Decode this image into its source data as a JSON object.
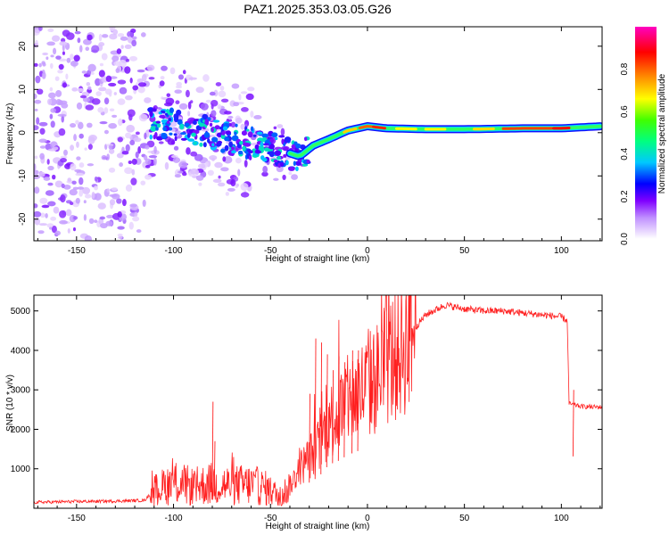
{
  "title": "PAZ1.2025.353.03.05.G26",
  "chart_data": [
    {
      "type": "heatmap",
      "panel": "spectrogram",
      "xlabel": "Height of straight line (km)",
      "ylabel": "Frequency (Hz)",
      "xlim": [
        -172,
        121
      ],
      "ylim": [
        -25,
        24.5
      ],
      "xticks": [
        -150,
        -100,
        -50,
        0,
        50,
        100
      ],
      "yticks": [
        -20,
        -10,
        0,
        10,
        20
      ],
      "tone_centerline": [
        {
          "x": -112,
          "y": 2.0
        },
        {
          "x": -100,
          "y": 2.0
        },
        {
          "x": -90,
          "y": 1.0
        },
        {
          "x": -75,
          "y": -1.0
        },
        {
          "x": -60,
          "y": -2.5
        },
        {
          "x": -50,
          "y": -3.5
        },
        {
          "x": -42,
          "y": -4.5
        },
        {
          "x": -35,
          "y": -5.5
        },
        {
          "x": -28,
          "y": -3.0
        },
        {
          "x": -20,
          "y": -1.5
        },
        {
          "x": -10,
          "y": 0.5
        },
        {
          "x": 0,
          "y": 1.5
        },
        {
          "x": 10,
          "y": 1.0
        },
        {
          "x": 30,
          "y": 0.8
        },
        {
          "x": 50,
          "y": 0.8
        },
        {
          "x": 80,
          "y": 1.0
        },
        {
          "x": 100,
          "y": 1.0
        },
        {
          "x": 121,
          "y": 1.5
        }
      ],
      "colorbar": {
        "label": "Normalized spectral amplitude",
        "range": [
          0.0,
          1.0
        ],
        "ticks": [
          "0.0",
          "0.2",
          "0.4",
          "0.6",
          "0.8"
        ],
        "colors": [
          "#ffffff",
          "#8000ff",
          "#0000ff",
          "#00ffff",
          "#00ff00",
          "#ffff00",
          "#ff8000",
          "#ff0000",
          "#ff00c0"
        ]
      }
    },
    {
      "type": "line",
      "panel": "snr",
      "xlabel": "Height of straight line (km)",
      "ylabel": "SNR (10 * v/v)",
      "xlim": [
        -172,
        121
      ],
      "ylim": [
        0,
        5400
      ],
      "xticks": [
        -150,
        -100,
        -50,
        0,
        50,
        100
      ],
      "yticks": [
        1000,
        2000,
        3000,
        4000,
        5000
      ],
      "line_color": "#ff2020",
      "envelope": [
        {
          "x": -172,
          "y": 150
        },
        {
          "x": -150,
          "y": 170
        },
        {
          "x": -130,
          "y": 180
        },
        {
          "x": -115,
          "y": 200
        },
        {
          "x": -110,
          "y": 450
        },
        {
          "x": -100,
          "y": 650
        },
        {
          "x": -90,
          "y": 550
        },
        {
          "x": -80,
          "y": 620
        },
        {
          "x": -70,
          "y": 580
        },
        {
          "x": -60,
          "y": 600
        },
        {
          "x": -52,
          "y": 500
        },
        {
          "x": -45,
          "y": 300
        },
        {
          "x": -40,
          "y": 550
        },
        {
          "x": -35,
          "y": 1000
        },
        {
          "x": -30,
          "y": 1300
        },
        {
          "x": -25,
          "y": 1600
        },
        {
          "x": -20,
          "y": 2200
        },
        {
          "x": -15,
          "y": 2400
        },
        {
          "x": -10,
          "y": 2700
        },
        {
          "x": -5,
          "y": 2900
        },
        {
          "x": 0,
          "y": 3100
        },
        {
          "x": 5,
          "y": 3300
        },
        {
          "x": 10,
          "y": 3700
        },
        {
          "x": 15,
          "y": 3900
        },
        {
          "x": 20,
          "y": 4200
        },
        {
          "x": 25,
          "y": 4600
        },
        {
          "x": 30,
          "y": 4900
        },
        {
          "x": 40,
          "y": 5150
        },
        {
          "x": 50,
          "y": 5050
        },
        {
          "x": 60,
          "y": 5000
        },
        {
          "x": 70,
          "y": 5000
        },
        {
          "x": 80,
          "y": 4950
        },
        {
          "x": 90,
          "y": 4900
        },
        {
          "x": 100,
          "y": 4850
        },
        {
          "x": 103,
          "y": 4750
        },
        {
          "x": 104,
          "y": 2650
        },
        {
          "x": 110,
          "y": 2580
        },
        {
          "x": 121,
          "y": 2560
        }
      ],
      "spikes": [
        {
          "x": -80,
          "y": 2700
        },
        {
          "x": -79,
          "y": 1700
        },
        {
          "x": -30,
          "y": 2900
        },
        {
          "x": -27,
          "y": 4300
        },
        {
          "x": -24,
          "y": 4200
        },
        {
          "x": -21,
          "y": 3900
        },
        {
          "x": -18,
          "y": 3500
        },
        {
          "x": -15,
          "y": 3850
        },
        {
          "x": -12,
          "y": 3700
        },
        {
          "x": -8,
          "y": 4000
        },
        {
          "x": -5,
          "y": 4000
        },
        {
          "x": 106,
          "y": 3000
        }
      ]
    }
  ]
}
